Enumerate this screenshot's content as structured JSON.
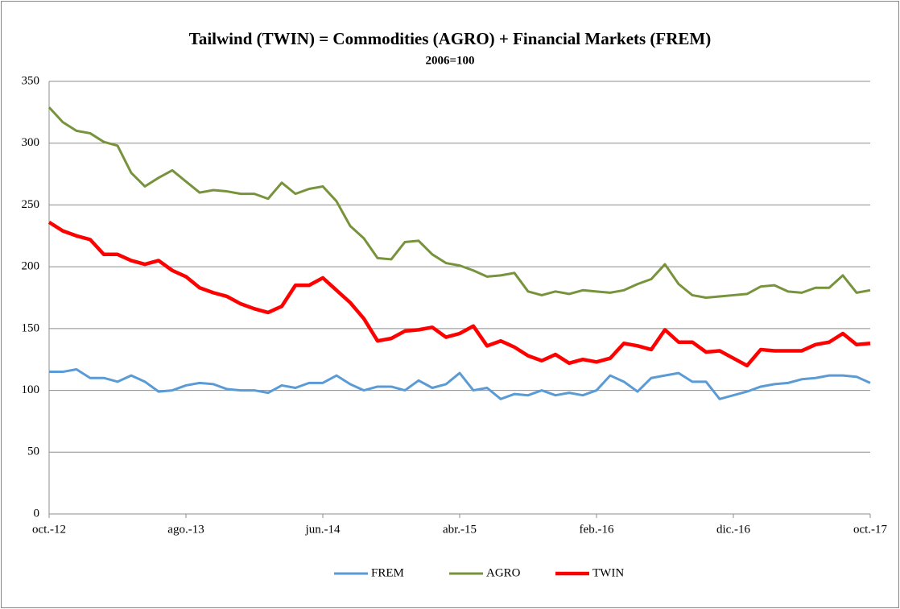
{
  "chart_data": {
    "type": "line",
    "title": "Tailwind (TWIN) = Commodities (AGRO) + Financial Markets (FREM)",
    "subtitle": "2006=100",
    "categories": [
      "oct.-12",
      null,
      null,
      null,
      null,
      null,
      null,
      null,
      null,
      null,
      "ago.-13",
      null,
      null,
      null,
      null,
      null,
      null,
      null,
      null,
      null,
      "jun.-14",
      null,
      null,
      null,
      null,
      null,
      null,
      null,
      null,
      null,
      "abr.-15",
      null,
      null,
      null,
      null,
      null,
      null,
      null,
      null,
      null,
      "feb.-16",
      null,
      null,
      null,
      null,
      null,
      null,
      null,
      null,
      null,
      "dic.-16",
      null,
      null,
      null,
      null,
      null,
      null,
      null,
      null,
      null,
      "oct.-17"
    ],
    "series": [
      {
        "name": "FREM",
        "color": "#5b9bd5",
        "values": [
          115,
          115,
          117,
          110,
          110,
          107,
          112,
          107,
          99,
          100,
          104,
          106,
          105,
          101,
          100,
          100,
          98,
          104,
          102,
          106,
          106,
          112,
          105,
          100,
          103,
          103,
          100,
          108,
          102,
          105,
          114,
          100,
          102,
          93,
          97,
          96,
          100,
          96,
          98,
          96,
          100,
          112,
          107,
          99,
          110,
          112,
          114,
          107,
          107,
          93,
          96,
          99,
          103,
          105,
          106,
          109,
          110,
          112,
          112,
          111,
          106
        ]
      },
      {
        "name": "AGRO",
        "color": "#77933c",
        "values": [
          329,
          317,
          310,
          308,
          301,
          298,
          276,
          265,
          272,
          278,
          269,
          260,
          262,
          261,
          259,
          259,
          255,
          268,
          259,
          263,
          265,
          253,
          233,
          223,
          207,
          206,
          220,
          221,
          210,
          203,
          201,
          197,
          192,
          193,
          195,
          180,
          177,
          180,
          178,
          181,
          180,
          179,
          181,
          186,
          190,
          202,
          186,
          177,
          175,
          176,
          177,
          178,
          184,
          185,
          180,
          179,
          183,
          183,
          193,
          179,
          181
        ]
      },
      {
        "name": "TWIN",
        "color": "#ff0000",
        "values": [
          236,
          229,
          225,
          222,
          210,
          210,
          205,
          202,
          205,
          197,
          192,
          183,
          179,
          176,
          170,
          166,
          163,
          168,
          185,
          185,
          191,
          181,
          171,
          158,
          140,
          142,
          148,
          149,
          151,
          143,
          146,
          152,
          136,
          140,
          135,
          128,
          124,
          129,
          122,
          125,
          123,
          126,
          138,
          136,
          133,
          149,
          139,
          139,
          131,
          132,
          126,
          120,
          133,
          132,
          132,
          132,
          137,
          139,
          146,
          137,
          138
        ]
      }
    ],
    "ylim": [
      0,
      350
    ],
    "yticks": [
      0,
      50,
      100,
      150,
      200,
      250,
      300,
      350
    ],
    "grid": true,
    "legend": "bottom"
  }
}
